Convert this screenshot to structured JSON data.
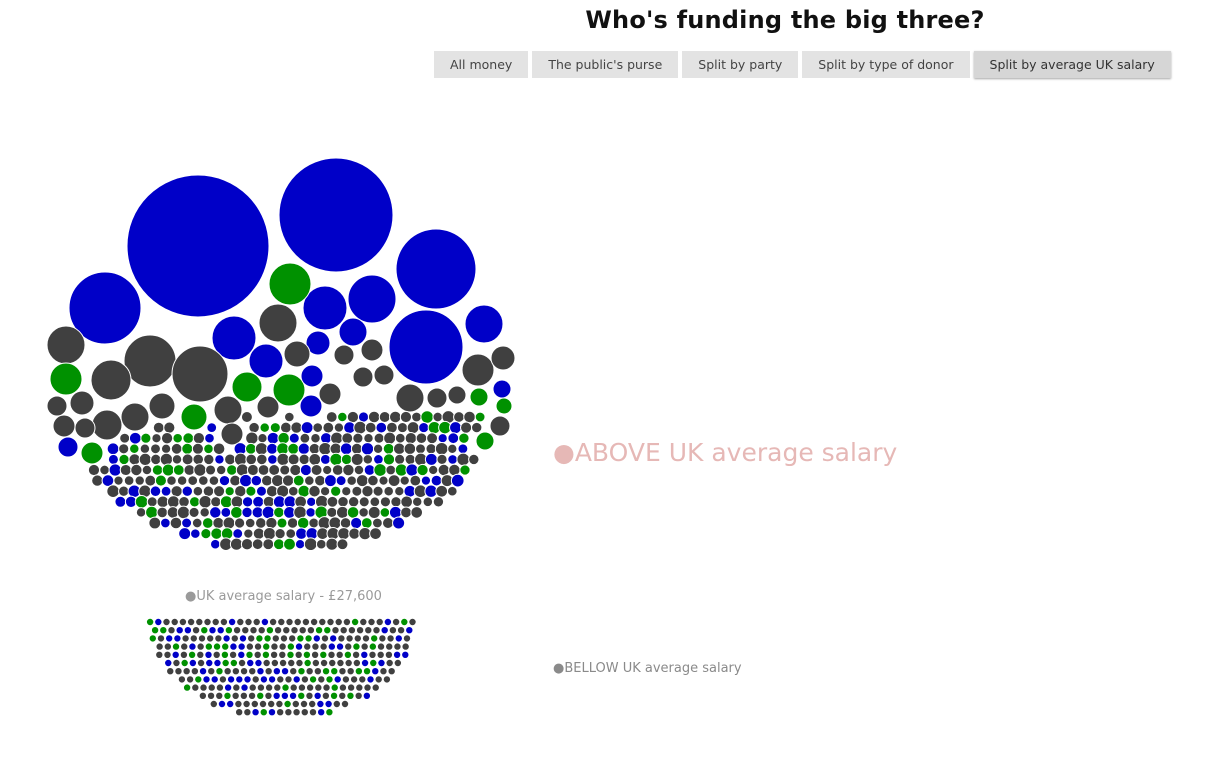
{
  "header": {
    "title": "Who's funding the big three?"
  },
  "tabs": [
    {
      "label": "All money",
      "active": false
    },
    {
      "label": "The public's purse",
      "active": false
    },
    {
      "label": "Split by party",
      "active": false
    },
    {
      "label": "Split by type of donor",
      "active": false
    },
    {
      "label": "Split by average UK salary",
      "active": true
    }
  ],
  "labels": {
    "above": "●ABOVE UK average salary",
    "threshold": "●UK average salary - £27,600",
    "below": "●BELLOW UK average salary"
  },
  "colors": {
    "blue": "#0000c8",
    "green": "#009100",
    "grey": "#404040",
    "above_label": "#e6b8b6"
  }
}
